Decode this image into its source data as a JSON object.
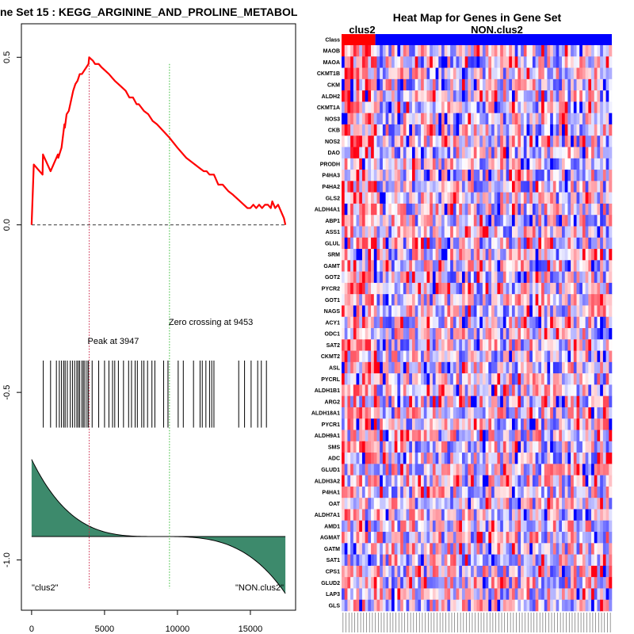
{
  "left_title": "ne Set  15 : KEGG_ARGININE_AND_PROLINE_METABOL",
  "chart_data": [
    {
      "type": "line",
      "title": "ne Set  15 : KEGG_ARGININE_AND_PROLINE_METABOL",
      "x_ticks": [
        0,
        5000,
        10000,
        15000
      ],
      "x_tick_labels": [
        "0",
        "5000",
        "10000",
        "15000"
      ],
      "y_ticks": [
        0.5,
        0.0,
        -0.5,
        -1.0
      ],
      "y_tick_labels": [
        "0.5",
        "0.0",
        "-0.5",
        "-1.0"
      ],
      "xlim": [
        -700,
        18100
      ],
      "ylim": [
        -1.15,
        0.6
      ],
      "running_es": {
        "x": [
          0,
          150,
          750,
          780,
          1300,
          1800,
          1830,
          2050,
          2080,
          2250,
          2280,
          2400,
          2550,
          2700,
          2850,
          3000,
          3150,
          3300,
          3450,
          3600,
          3750,
          3900,
          3947,
          4200,
          4350,
          4600,
          4800,
          5050,
          5300,
          5500,
          5700,
          5950,
          6200,
          6450,
          6700,
          6950,
          7200,
          7350,
          7700,
          8000,
          8300,
          8600,
          9453,
          10000,
          10600,
          11200,
          11500,
          11800,
          12000,
          12200,
          12500,
          12800,
          13100,
          13500,
          13800,
          14300,
          14800,
          15000,
          15200,
          15400,
          15600,
          15800,
          16000,
          16200,
          16400,
          16500,
          16700,
          16900,
          17100,
          17300,
          17400
        ],
        "y": [
          0.0,
          0.18,
          0.15,
          0.21,
          0.16,
          0.21,
          0.2,
          0.23,
          0.24,
          0.3,
          0.29,
          0.33,
          0.34,
          0.37,
          0.4,
          0.42,
          0.43,
          0.45,
          0.45,
          0.46,
          0.47,
          0.48,
          0.5,
          0.49,
          0.48,
          0.48,
          0.47,
          0.46,
          0.45,
          0.44,
          0.43,
          0.42,
          0.41,
          0.4,
          0.38,
          0.38,
          0.36,
          0.36,
          0.34,
          0.33,
          0.31,
          0.3,
          0.26,
          0.23,
          0.2,
          0.18,
          0.17,
          0.16,
          0.16,
          0.15,
          0.15,
          0.12,
          0.12,
          0.1,
          0.09,
          0.07,
          0.05,
          0.05,
          0.06,
          0.05,
          0.06,
          0.05,
          0.06,
          0.06,
          0.05,
          0.07,
          0.05,
          0.06,
          0.04,
          0.02,
          0.0
        ]
      },
      "hit_positions": [
        800,
        1300,
        1700,
        1900,
        2050,
        2200,
        2300,
        2450,
        2650,
        2800,
        2950,
        3100,
        3200,
        3300,
        3450,
        3550,
        3650,
        3800,
        3900,
        4150,
        4600,
        5000,
        5300,
        5550,
        5700,
        5950,
        6300,
        6650,
        6850,
        7100,
        7250,
        7550,
        7700,
        7950,
        8250,
        8450,
        9050,
        9350,
        10050,
        10400,
        11100,
        11550,
        11700,
        11950,
        12200,
        12350,
        12500,
        14200,
        14600,
        15050,
        15500,
        15750,
        16100
      ],
      "hit_band": [
        -0.405,
        -0.605
      ],
      "ranked_metric": {
        "baseline": -0.93,
        "start": -0.7,
        "end": -1.1
      },
      "peak_x": 3947,
      "zero_crossing_x": 9453,
      "peak_label": "Peak at 3947",
      "zero_label": "Zero crossing at 9453",
      "left_group_label": "\"clus2\"",
      "right_group_label": "\"NON.clus2\"",
      "colors": {
        "es_line": "#ff0000",
        "peak_line": "#cc2244",
        "zero_line": "#33bb33",
        "metric_fill": "#3d8a6c",
        "hits": "#000000"
      }
    },
    {
      "type": "heatmap",
      "title": "Heat Map for Genes in Gene Set",
      "group_labels": [
        "clus2",
        "NON.clus2"
      ],
      "class_row_label": "Class",
      "class_split_fraction": 0.125,
      "n_columns": 92,
      "genes": [
        "MAOB",
        "MAOA",
        "CKMT1B",
        "CKM",
        "ALDH2",
        "CKMT1A",
        "NOS3",
        "CKB",
        "NOS2",
        "DAO",
        "PRODH",
        "P4HA3",
        "P4HA2",
        "GLS2",
        "ALDH4A1",
        "ABP1",
        "ASS1",
        "GLUL",
        "SRM",
        "GAMT",
        "GOT2",
        "PYCR2",
        "GOT1",
        "NAGS",
        "ACY1",
        "ODC1",
        "SAT2",
        "CKMT2",
        "ASL",
        "PYCRL",
        "ALDH1B1",
        "ARG2",
        "ALDH18A1",
        "PYCR1",
        "ALDH9A1",
        "SMS",
        "ADC",
        "GLUD1",
        "ALDH3A2",
        "P4HA1",
        "OAT",
        "ALDH7A1",
        "AMD1",
        "AGMAT",
        "GATM",
        "SAT1",
        "CPS1",
        "GLUD2",
        "LAP3",
        "GLS"
      ],
      "colors": {
        "class_pos": "#ff0000",
        "class_neg": "#0000ff",
        "high": "#ff0000",
        "mid": "#ffffff",
        "low": "#0000ff"
      }
    }
  ]
}
